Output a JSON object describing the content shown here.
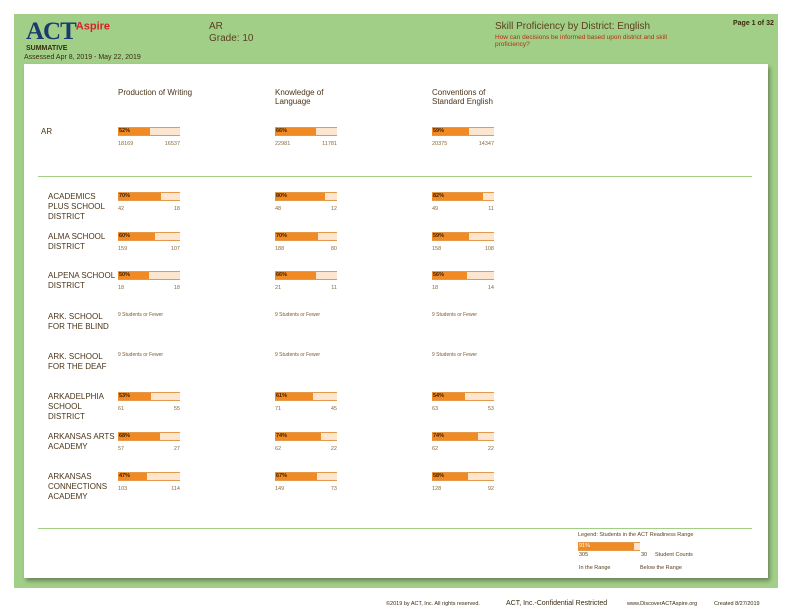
{
  "header": {
    "logo_main": "ACT",
    "logo_sub": "Aspire",
    "assessment_type": "SUMMATIVE",
    "assessed": "Assessed Apr 8, 2019 - May 22, 2019",
    "state": "AR",
    "grade": "Grade: 10",
    "title": "Skill Proficiency by District: English",
    "subtitle": "How can decisions be informed based upon district and skill proficiency?",
    "page": "Page 1 of 32"
  },
  "colors": {
    "accent": "#ef8a24",
    "background_green": "#a2cf88",
    "bar_remaining": "#fde6cf"
  },
  "columns": [
    "Production of Writing",
    "Knowledge of Language",
    "Conventions of Standard English"
  ],
  "state_row": {
    "name": "AR",
    "cells": [
      {
        "pct": "52%",
        "value": 52,
        "in": "18169",
        "below": "16537"
      },
      {
        "pct": "66%",
        "value": 66,
        "in": "22981",
        "below": "11781"
      },
      {
        "pct": "59%",
        "value": 59,
        "in": "20375",
        "below": "14347"
      }
    ]
  },
  "rows": [
    {
      "name": "ACADEMICS PLUS SCHOOL DISTRICT",
      "cells": [
        {
          "pct": "70%",
          "value": 70,
          "in": "42",
          "below": "18"
        },
        {
          "pct": "80%",
          "value": 80,
          "in": "48",
          "below": "12"
        },
        {
          "pct": "82%",
          "value": 82,
          "in": "49",
          "below": "11"
        }
      ]
    },
    {
      "name": "ALMA SCHOOL DISTRICT",
      "cells": [
        {
          "pct": "60%",
          "value": 60,
          "in": "159",
          "below": "107"
        },
        {
          "pct": "70%",
          "value": 70,
          "in": "188",
          "below": "80"
        },
        {
          "pct": "59%",
          "value": 59,
          "in": "158",
          "below": "108"
        }
      ]
    },
    {
      "name": "ALPENA SCHOOL DISTRICT",
      "cells": [
        {
          "pct": "50%",
          "value": 50,
          "in": "18",
          "below": "18"
        },
        {
          "pct": "66%",
          "value": 66,
          "in": "21",
          "below": "11"
        },
        {
          "pct": "56%",
          "value": 56,
          "in": "18",
          "below": "14"
        }
      ]
    },
    {
      "name": "ARK. SCHOOL FOR THE BLIND",
      "few": "9 Students or Fewer"
    },
    {
      "name": "ARK. SCHOOL FOR THE DEAF",
      "few": "9 Students or Fewer"
    },
    {
      "name": "ARKADELPHIA SCHOOL DISTRICT",
      "cells": [
        {
          "pct": "53%",
          "value": 53,
          "in": "61",
          "below": "55"
        },
        {
          "pct": "61%",
          "value": 61,
          "in": "71",
          "below": "45"
        },
        {
          "pct": "54%",
          "value": 54,
          "in": "63",
          "below": "53"
        }
      ]
    },
    {
      "name": "ARKANSAS ARTS ACADEMY",
      "cells": [
        {
          "pct": "68%",
          "value": 68,
          "in": "57",
          "below": "27"
        },
        {
          "pct": "74%",
          "value": 74,
          "in": "62",
          "below": "22"
        },
        {
          "pct": "74%",
          "value": 74,
          "in": "62",
          "below": "22"
        }
      ]
    },
    {
      "name": "ARKANSAS CONNECTIONS ACADEMY",
      "cells": [
        {
          "pct": "47%",
          "value": 47,
          "in": "103",
          "below": "114"
        },
        {
          "pct": "67%",
          "value": 67,
          "in": "149",
          "below": "73"
        },
        {
          "pct": "58%",
          "value": 58,
          "in": "128",
          "below": "92"
        }
      ]
    }
  ],
  "legend": {
    "title": "Legend: Students in the ACT Readiness Range",
    "pct": "91%",
    "value": 91,
    "in": "305",
    "below": "30",
    "counts_label": "Student Counts",
    "in_label": "In the Range",
    "below_label": "Below the Range"
  },
  "footer": {
    "copyright": "©2019 by ACT, Inc. All rights reserved.",
    "confidential": "ACT, Inc.-Confidential Restricted",
    "url": "www.DiscoverACTAspire.org",
    "created": "Created 8/27/2019"
  }
}
